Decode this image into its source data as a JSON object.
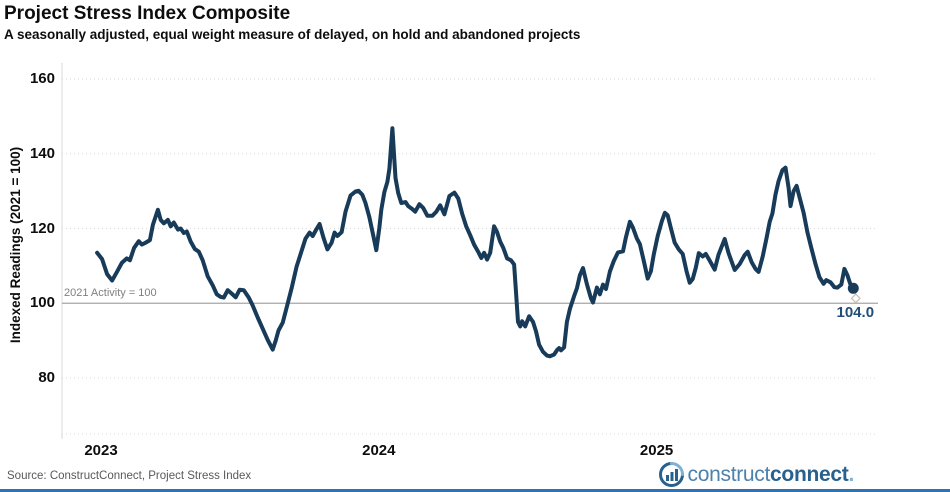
{
  "header": {
    "title": "Project Stress Index Composite",
    "subtitle": "A seasonally adjusted, equal weight measure of delayed, on hold and abandoned projects"
  },
  "chart": {
    "y_axis_title": "Indexed Readings (2021 = 100)",
    "y_ticks": [
      160,
      140,
      120,
      100,
      80
    ],
    "x_ticks": [
      "2023",
      "2024",
      "2025"
    ],
    "ref_line_label": "2021 Activity = 100",
    "end_label": "104.0",
    "colors": {
      "line": "#173b59",
      "grid": "#d9d9d9",
      "ref_line": "#a6a6a6",
      "end_label": "#1f4e79",
      "ref_label_text": "#7f7f7f",
      "source_text": "#595959",
      "bottom_bar": "#2e74b5",
      "logo_construct": "#4d81ad",
      "logo_connect": "#28618e",
      "logo_period": "#7fb2d4",
      "ghost_marker": "#c8bfb2"
    }
  },
  "chart_data": {
    "type": "line",
    "title": "Project Stress Index Composite",
    "subtitle": "A seasonally adjusted, equal weight measure of delayed, on hold and abandoned projects",
    "xlabel": "",
    "ylabel": "Indexed Readings (2021 = 100)",
    "ylim": [
      65,
      164
    ],
    "xlim": [
      2022.97,
      2025.79
    ],
    "x_tick_years": [
      2023,
      2024,
      2025
    ],
    "y_tick_values": [
      160,
      140,
      120,
      100,
      80
    ],
    "grid": "horizontal-dotted",
    "legend": "none",
    "ref_line": {
      "value": 100,
      "label": "2021 Activity = 100"
    },
    "last_value": 104.0,
    "last_value_label": "104.0",
    "ghost_marker": {
      "year": 2025.717,
      "value": 101.3
    },
    "series": [
      {
        "name": "Project Stress Index Composite",
        "points": [
          [
            2022.986,
            113.5
          ],
          [
            2023.004,
            111.8
          ],
          [
            2023.022,
            107.8
          ],
          [
            2023.04,
            106.1
          ],
          [
            2023.057,
            108.3
          ],
          [
            2023.075,
            110.8
          ],
          [
            2023.093,
            112.0
          ],
          [
            2023.104,
            111.5
          ],
          [
            2023.119,
            114.8
          ],
          [
            2023.136,
            116.6
          ],
          [
            2023.147,
            115.7
          ],
          [
            2023.158,
            116.1
          ],
          [
            2023.176,
            116.9
          ],
          [
            2023.187,
            121.0
          ],
          [
            2023.205,
            125.0
          ],
          [
            2023.215,
            122.3
          ],
          [
            2023.226,
            121.4
          ],
          [
            2023.241,
            122.3
          ],
          [
            2023.251,
            120.6
          ],
          [
            2023.262,
            121.6
          ],
          [
            2023.277,
            119.7
          ],
          [
            2023.287,
            120.0
          ],
          [
            2023.298,
            118.8
          ],
          [
            2023.309,
            119.2
          ],
          [
            2023.323,
            116.5
          ],
          [
            2023.338,
            114.5
          ],
          [
            2023.352,
            113.8
          ],
          [
            2023.366,
            111.5
          ],
          [
            2023.384,
            107.2
          ],
          [
            2023.402,
            104.8
          ],
          [
            2023.417,
            102.4
          ],
          [
            2023.431,
            101.7
          ],
          [
            2023.442,
            101.5
          ],
          [
            2023.456,
            103.5
          ],
          [
            2023.47,
            102.6
          ],
          [
            2023.485,
            101.6
          ],
          [
            2023.499,
            103.6
          ],
          [
            2023.514,
            103.5
          ],
          [
            2023.532,
            101.5
          ],
          [
            2023.546,
            99.4
          ],
          [
            2023.564,
            96.2
          ],
          [
            2023.582,
            93.2
          ],
          [
            2023.6,
            90.2
          ],
          [
            2023.618,
            87.6
          ],
          [
            2023.629,
            90.0
          ],
          [
            2023.639,
            92.7
          ],
          [
            2023.654,
            94.8
          ],
          [
            2023.668,
            98.8
          ],
          [
            2023.686,
            104.0
          ],
          [
            2023.704,
            109.8
          ],
          [
            2023.722,
            114.0
          ],
          [
            2023.736,
            117.3
          ],
          [
            2023.751,
            118.9
          ],
          [
            2023.762,
            118.0
          ],
          [
            2023.776,
            119.9
          ],
          [
            2023.787,
            121.2
          ],
          [
            2023.801,
            117.5
          ],
          [
            2023.815,
            114.4
          ],
          [
            2023.83,
            116.2
          ],
          [
            2023.841,
            118.9
          ],
          [
            2023.851,
            118.0
          ],
          [
            2023.866,
            119.0
          ],
          [
            2023.88,
            124.5
          ],
          [
            2023.898,
            128.8
          ],
          [
            2023.916,
            129.9
          ],
          [
            2023.927,
            130.1
          ],
          [
            2023.941,
            129.0
          ],
          [
            2023.952,
            126.8
          ],
          [
            2023.966,
            123.0
          ],
          [
            2023.981,
            117.8
          ],
          [
            2023.991,
            114.2
          ],
          [
            2024.002,
            120.3
          ],
          [
            2024.009,
            125.0
          ],
          [
            2024.02,
            129.8
          ],
          [
            2024.031,
            132.5
          ],
          [
            2024.038,
            136.0
          ],
          [
            2024.049,
            146.8
          ],
          [
            2024.06,
            133.5
          ],
          [
            2024.07,
            129.5
          ],
          [
            2024.081,
            126.8
          ],
          [
            2024.096,
            127.1
          ],
          [
            2024.106,
            126.0
          ],
          [
            2024.121,
            125.2
          ],
          [
            2024.131,
            124.5
          ],
          [
            2024.146,
            126.5
          ],
          [
            2024.16,
            125.5
          ],
          [
            2024.175,
            123.4
          ],
          [
            2024.193,
            123.4
          ],
          [
            2024.207,
            124.5
          ],
          [
            2024.221,
            126.2
          ],
          [
            2024.236,
            123.8
          ],
          [
            2024.254,
            128.7
          ],
          [
            2024.272,
            129.6
          ],
          [
            2024.286,
            128.0
          ],
          [
            2024.3,
            124.0
          ],
          [
            2024.315,
            120.5
          ],
          [
            2024.329,
            118.2
          ],
          [
            2024.343,
            115.7
          ],
          [
            2024.358,
            113.7
          ],
          [
            2024.369,
            112.1
          ],
          [
            2024.379,
            113.5
          ],
          [
            2024.39,
            111.7
          ],
          [
            2024.401,
            113.5
          ],
          [
            2024.415,
            120.6
          ],
          [
            2024.426,
            119.0
          ],
          [
            2024.437,
            116.5
          ],
          [
            2024.448,
            114.8
          ],
          [
            2024.462,
            112.0
          ],
          [
            2024.476,
            111.5
          ],
          [
            2024.487,
            110.4
          ],
          [
            2024.494,
            103.0
          ],
          [
            2024.501,
            95.0
          ],
          [
            2024.509,
            93.8
          ],
          [
            2024.516,
            95.2
          ],
          [
            2024.527,
            93.8
          ],
          [
            2024.541,
            96.5
          ],
          [
            2024.555,
            95.0
          ],
          [
            2024.566,
            92.5
          ],
          [
            2024.577,
            88.9
          ],
          [
            2024.591,
            87.0
          ],
          [
            2024.606,
            86.0
          ],
          [
            2024.616,
            85.8
          ],
          [
            2024.631,
            86.3
          ],
          [
            2024.642,
            87.5
          ],
          [
            2024.649,
            88.0
          ],
          [
            2024.656,
            87.4
          ],
          [
            2024.667,
            88.2
          ],
          [
            2024.677,
            95.0
          ],
          [
            2024.688,
            98.5
          ],
          [
            2024.703,
            101.9
          ],
          [
            2024.713,
            104.0
          ],
          [
            2024.724,
            107.5
          ],
          [
            2024.735,
            109.4
          ],
          [
            2024.749,
            105.1
          ],
          [
            2024.764,
            101.3
          ],
          [
            2024.771,
            100.2
          ],
          [
            2024.785,
            104.2
          ],
          [
            2024.796,
            102.4
          ],
          [
            2024.807,
            105.0
          ],
          [
            2024.818,
            103.8
          ],
          [
            2024.832,
            108.5
          ],
          [
            2024.846,
            111.3
          ],
          [
            2024.861,
            113.6
          ],
          [
            2024.879,
            113.9
          ],
          [
            2024.889,
            117.5
          ],
          [
            2024.904,
            121.8
          ],
          [
            2024.915,
            120.2
          ],
          [
            2024.929,
            117.3
          ],
          [
            2024.94,
            115.8
          ],
          [
            2024.954,
            111.3
          ],
          [
            2024.968,
            106.6
          ],
          [
            2024.979,
            108.5
          ],
          [
            2024.99,
            113.1
          ],
          [
            2025.004,
            118.0
          ],
          [
            2025.019,
            122.0
          ],
          [
            2025.03,
            124.2
          ],
          [
            2025.04,
            123.5
          ],
          [
            2025.051,
            120.2
          ],
          [
            2025.065,
            116.2
          ],
          [
            2025.08,
            114.4
          ],
          [
            2025.094,
            113.2
          ],
          [
            2025.108,
            108.5
          ],
          [
            2025.119,
            105.5
          ],
          [
            2025.13,
            106.5
          ],
          [
            2025.141,
            109.5
          ],
          [
            2025.152,
            113.4
          ],
          [
            2025.166,
            112.5
          ],
          [
            2025.177,
            113.2
          ],
          [
            2025.191,
            111.4
          ],
          [
            2025.209,
            109.0
          ],
          [
            2025.223,
            113.0
          ],
          [
            2025.245,
            117.2
          ],
          [
            2025.259,
            113.4
          ],
          [
            2025.281,
            108.9
          ],
          [
            2025.299,
            110.5
          ],
          [
            2025.317,
            112.9
          ],
          [
            2025.328,
            113.8
          ],
          [
            2025.342,
            111.0
          ],
          [
            2025.356,
            109.2
          ],
          [
            2025.367,
            108.4
          ],
          [
            2025.382,
            112.5
          ],
          [
            2025.396,
            117.5
          ],
          [
            2025.407,
            121.8
          ],
          [
            2025.417,
            124.0
          ],
          [
            2025.428,
            129.1
          ],
          [
            2025.439,
            132.7
          ],
          [
            2025.453,
            135.6
          ],
          [
            2025.464,
            136.3
          ],
          [
            2025.475,
            130.9
          ],
          [
            2025.482,
            126.0
          ],
          [
            2025.493,
            130.0
          ],
          [
            2025.504,
            131.4
          ],
          [
            2025.514,
            128.5
          ],
          [
            2025.529,
            124.2
          ],
          [
            2025.543,
            119.0
          ],
          [
            2025.557,
            114.8
          ],
          [
            2025.572,
            110.5
          ],
          [
            2025.586,
            107.0
          ],
          [
            2025.601,
            105.2
          ],
          [
            2025.611,
            106.2
          ],
          [
            2025.626,
            105.6
          ],
          [
            2025.64,
            104.3
          ],
          [
            2025.651,
            104.2
          ],
          [
            2025.665,
            105.0
          ],
          [
            2025.676,
            109.2
          ],
          [
            2025.687,
            107.5
          ],
          [
            2025.697,
            105.2
          ],
          [
            2025.708,
            104.0
          ]
        ]
      }
    ]
  },
  "footer": {
    "source": "Source: ConstructConnect, Project Stress Index",
    "logo_construct": "construct",
    "logo_connect": "connect",
    "logo_period": "."
  }
}
